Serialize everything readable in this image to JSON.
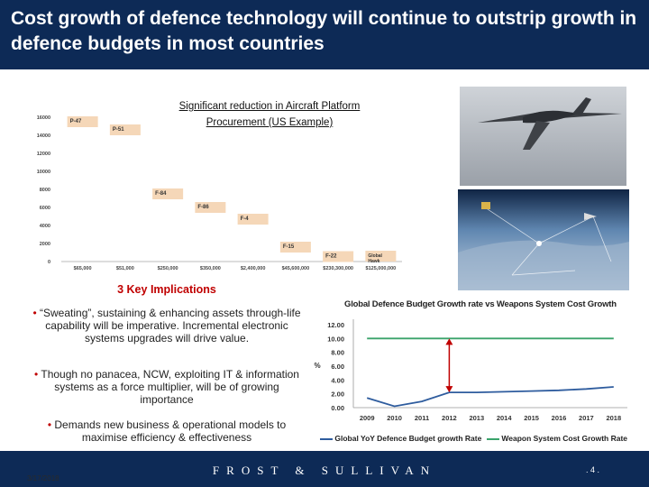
{
  "header": {
    "title": "Cost growth of defence technology will continue to outstrip growth in defence budgets in most countries"
  },
  "chart_data": [
    {
      "type": "bar",
      "title": "Significant reduction in Aircraft Platform Procurement (US Example)",
      "ylim": [
        0,
        16000
      ],
      "y_ticks": [
        "0",
        "2000",
        "4000",
        "6000",
        "8000",
        "10000",
        "12000",
        "14000",
        "16000"
      ],
      "categories": [
        "$65,000",
        "$51,000",
        "$250,000",
        "$350,000",
        "$2,400,000",
        "$45,600,000",
        "$230,300,000",
        "$125,000,000"
      ],
      "labels": [
        "P-47",
        "P-51",
        "F-84",
        "F-86",
        "F-4",
        "F-15",
        "F-22",
        "Global Hawk"
      ],
      "values": [
        15500,
        14600,
        7500,
        6000,
        4700,
        1600,
        550,
        600
      ],
      "bar_color": "#f5d7b8",
      "grid": false
    },
    {
      "type": "line",
      "title": "Global Defence Budget Growth rate vs Weapons System Cost Growth",
      "ylabel": "%",
      "ylim": [
        0,
        12
      ],
      "y_ticks": [
        "0.00",
        "2.00",
        "4.00",
        "6.00",
        "8.00",
        "10.00",
        "12.00"
      ],
      "x": [
        "2009",
        "2010",
        "2011",
        "2012",
        "2013",
        "2014",
        "2015",
        "2016",
        "2017",
        "2018"
      ],
      "series": [
        {
          "name": "Global YoY Defence Budget growth Rate",
          "color": "#2e5c9e",
          "values": [
            1.4,
            0.2,
            0.9,
            2.2,
            2.2,
            2.3,
            2.4,
            2.5,
            2.7,
            3.0
          ]
        },
        {
          "name": "Weapon System Cost Growth Rate",
          "color": "#3aa36b",
          "values": [
            10,
            10,
            10,
            10,
            10,
            10,
            10,
            10,
            10,
            10
          ]
        }
      ],
      "legend_position": "bottom"
    }
  ],
  "implications": {
    "title": "3 Key Implications",
    "bullets": [
      "“Sweating”, sustaining & enhancing assets through-life capability will be imperative. Incremental electronic systems upgrades will drive value.",
      "Though no panacea, NCW, exploiting IT & information systems as a force multiplier, will be of growing importance",
      "Demands new business & operational models to maximise efficiency & effectiveness"
    ],
    "bullet_mark": "•"
  },
  "footer": {
    "logo": "FROST & SULLIVAN",
    "page": ". 4 .",
    "date": "3/17/2018"
  },
  "colors": {
    "header_bg": "#0d2a56",
    "accent_red": "#c00000"
  }
}
